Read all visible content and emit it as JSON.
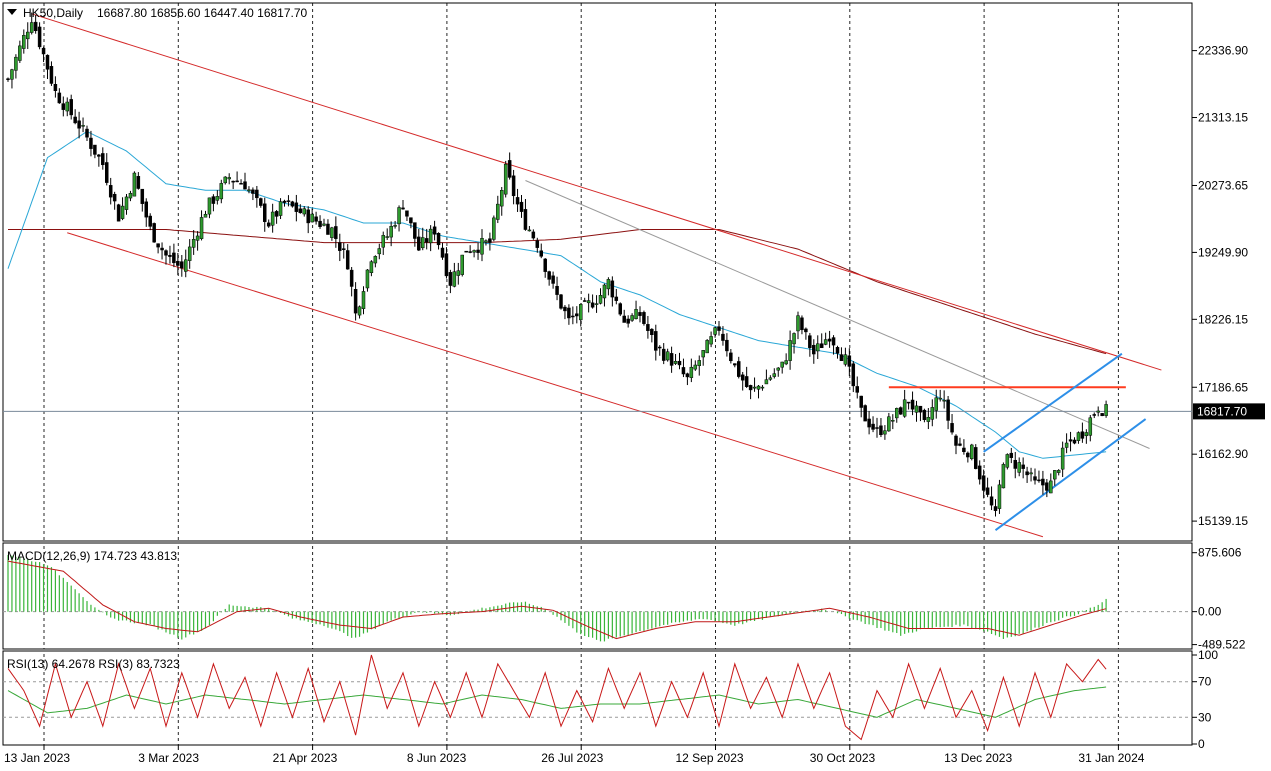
{
  "header": {
    "symbol_timeframe": "HK50,Daily",
    "ohlc": "16687.80 16856.60 16447.40 16817.70"
  },
  "colors": {
    "bull": "#2e9a2e",
    "bear": "#000000",
    "ma_fast": "#2aa7d6",
    "ma_slow": "#8b1010",
    "channel": "#d42a2a",
    "horizontal": "#ff3b1f",
    "rising_channel": "#2d8fe8",
    "trendline": "#9a9a9a",
    "macd_hist": "#39b539",
    "macd_signal": "#c01818",
    "rsi13": "#3aa83a",
    "rsi3": "#c81818",
    "current_price_bg": "#000000"
  },
  "chart_data": [
    {
      "type": "candlestick",
      "name": "price",
      "ylim": [
        14850,
        23050
      ],
      "y_ticks": [
        "22336.90",
        "21313.15",
        "20273.65",
        "19249.90",
        "18226.15",
        "17186.65",
        "16162.90",
        "15139.15"
      ],
      "current_price": "16817.70",
      "x_labels": [
        "13 Jan 2023",
        "3 Mar 2023",
        "21 Apr 2023",
        "8 Jun 2023",
        "26 Jul 2023",
        "12 Sep 2023",
        "30 Oct 2023",
        "13 Dec 2023",
        "31 Jan 2024"
      ],
      "close_anchors": [
        [
          0,
          21900
        ],
        [
          6,
          22850
        ],
        [
          12,
          21700
        ],
        [
          18,
          21200
        ],
        [
          24,
          20600
        ],
        [
          28,
          19800
        ],
        [
          32,
          20400
        ],
        [
          36,
          19600
        ],
        [
          40,
          19200
        ],
        [
          44,
          19000
        ],
        [
          50,
          19900
        ],
        [
          56,
          20400
        ],
        [
          60,
          20300
        ],
        [
          66,
          19700
        ],
        [
          70,
          20000
        ],
        [
          76,
          19800
        ],
        [
          82,
          19600
        ],
        [
          86,
          19100
        ],
        [
          88,
          18300
        ],
        [
          92,
          19200
        ],
        [
          96,
          19500
        ],
        [
          100,
          20000
        ],
        [
          104,
          19300
        ],
        [
          108,
          19600
        ],
        [
          112,
          18800
        ],
        [
          116,
          19300
        ],
        [
          122,
          19400
        ],
        [
          126,
          20500
        ],
        [
          130,
          19800
        ],
        [
          134,
          19400
        ],
        [
          138,
          18700
        ],
        [
          142,
          18200
        ],
        [
          146,
          18400
        ],
        [
          150,
          18600
        ],
        [
          152,
          18800
        ],
        [
          156,
          18200
        ],
        [
          160,
          18300
        ],
        [
          164,
          17800
        ],
        [
          168,
          17600
        ],
        [
          172,
          17300
        ],
        [
          176,
          17700
        ],
        [
          180,
          18100
        ],
        [
          184,
          17500
        ],
        [
          188,
          17100
        ],
        [
          192,
          17300
        ],
        [
          196,
          17500
        ],
        [
          200,
          18200
        ],
        [
          204,
          17700
        ],
        [
          208,
          18000
        ],
        [
          212,
          17600
        ],
        [
          216,
          16800
        ],
        [
          220,
          16500
        ],
        [
          224,
          16700
        ],
        [
          228,
          17000
        ],
        [
          232,
          16600
        ],
        [
          236,
          17100
        ],
        [
          240,
          16300
        ],
        [
          244,
          16200
        ],
        [
          248,
          15500
        ],
        [
          250,
          15200
        ],
        [
          252,
          16100
        ],
        [
          256,
          16000
        ],
        [
          260,
          15700
        ],
        [
          264,
          15700
        ],
        [
          268,
          16300
        ],
        [
          272,
          16500
        ],
        [
          276,
          16900
        ],
        [
          278,
          16818
        ]
      ],
      "ma_fast_anchors": [
        [
          0,
          19000
        ],
        [
          10,
          20700
        ],
        [
          20,
          21100
        ],
        [
          30,
          20800
        ],
        [
          40,
          20300
        ],
        [
          50,
          20200
        ],
        [
          60,
          20200
        ],
        [
          70,
          20000
        ],
        [
          80,
          19900
        ],
        [
          90,
          19700
        ],
        [
          100,
          19700
        ],
        [
          110,
          19500
        ],
        [
          120,
          19400
        ],
        [
          130,
          19300
        ],
        [
          140,
          19200
        ],
        [
          150,
          18800
        ],
        [
          160,
          18600
        ],
        [
          170,
          18300
        ],
        [
          180,
          18100
        ],
        [
          190,
          17900
        ],
        [
          200,
          17800
        ],
        [
          210,
          17700
        ],
        [
          220,
          17400
        ],
        [
          230,
          17200
        ],
        [
          240,
          16900
        ],
        [
          250,
          16500
        ],
        [
          256,
          16200
        ],
        [
          262,
          16100
        ],
        [
          270,
          16150
        ],
        [
          278,
          16200
        ]
      ],
      "ma_slow_anchors": [
        [
          0,
          19600
        ],
        [
          20,
          19600
        ],
        [
          40,
          19600
        ],
        [
          60,
          19500
        ],
        [
          80,
          19400
        ],
        [
          100,
          19400
        ],
        [
          120,
          19400
        ],
        [
          140,
          19450
        ],
        [
          160,
          19600
        ],
        [
          180,
          19600
        ],
        [
          200,
          19300
        ],
        [
          220,
          18800
        ],
        [
          240,
          18400
        ],
        [
          260,
          18000
        ],
        [
          278,
          17700
        ]
      ],
      "lines": [
        {
          "role": "channel",
          "from": [
            6,
            22900
          ],
          "to": [
            292,
            17450
          ]
        },
        {
          "role": "channel",
          "from": [
            15,
            19550
          ],
          "to": [
            262,
            14900
          ]
        },
        {
          "role": "trendline",
          "from": [
            131,
            20350
          ],
          "to": [
            289,
            16250
          ]
        },
        {
          "role": "horizontal",
          "from": [
            223,
            17186
          ],
          "to": [
            283,
            17186
          ]
        },
        {
          "role": "rising_channel",
          "from": [
            247,
            16200
          ],
          "to": [
            282,
            17700
          ]
        },
        {
          "role": "rising_channel",
          "from": [
            250,
            15000
          ],
          "to": [
            288,
            16700
          ]
        }
      ]
    },
    {
      "type": "macd",
      "name": "MACD",
      "label": "MACD(12,26,9) 174.723 43.813",
      "ylim": [
        -540,
        960
      ],
      "y_ticks": [
        "875.606",
        "0.00",
        "-489.522"
      ],
      "hist_anchors": [
        [
          0,
          850
        ],
        [
          10,
          700
        ],
        [
          16,
          400
        ],
        [
          22,
          50
        ],
        [
          26,
          -100
        ],
        [
          36,
          -200
        ],
        [
          44,
          -400
        ],
        [
          50,
          -250
        ],
        [
          56,
          100
        ],
        [
          66,
          50
        ],
        [
          72,
          -100
        ],
        [
          80,
          -200
        ],
        [
          88,
          -400
        ],
        [
          96,
          -150
        ],
        [
          104,
          0
        ],
        [
          112,
          -50
        ],
        [
          120,
          50
        ],
        [
          130,
          150
        ],
        [
          136,
          50
        ],
        [
          144,
          -300
        ],
        [
          150,
          -450
        ],
        [
          156,
          -350
        ],
        [
          166,
          -200
        ],
        [
          176,
          -100
        ],
        [
          184,
          -200
        ],
        [
          196,
          -50
        ],
        [
          206,
          50
        ],
        [
          216,
          -150
        ],
        [
          226,
          -350
        ],
        [
          232,
          -250
        ],
        [
          242,
          -200
        ],
        [
          248,
          -300
        ],
        [
          252,
          -400
        ],
        [
          258,
          -300
        ],
        [
          264,
          -150
        ],
        [
          270,
          -50
        ],
        [
          276,
          100
        ],
        [
          278,
          175
        ]
      ],
      "signal_anchors": [
        [
          0,
          750
        ],
        [
          14,
          600
        ],
        [
          24,
          100
        ],
        [
          32,
          -150
        ],
        [
          40,
          -250
        ],
        [
          48,
          -300
        ],
        [
          58,
          0
        ],
        [
          66,
          50
        ],
        [
          74,
          -80
        ],
        [
          84,
          -200
        ],
        [
          92,
          -250
        ],
        [
          100,
          -80
        ],
        [
          110,
          -30
        ],
        [
          120,
          0
        ],
        [
          130,
          80
        ],
        [
          138,
          20
        ],
        [
          146,
          -200
        ],
        [
          154,
          -400
        ],
        [
          164,
          -250
        ],
        [
          174,
          -150
        ],
        [
          184,
          -150
        ],
        [
          196,
          -50
        ],
        [
          208,
          50
        ],
        [
          218,
          -80
        ],
        [
          228,
          -250
        ],
        [
          238,
          -250
        ],
        [
          248,
          -250
        ],
        [
          256,
          -350
        ],
        [
          264,
          -200
        ],
        [
          272,
          -50
        ],
        [
          278,
          44
        ]
      ]
    },
    {
      "type": "rsi",
      "name": "RSI",
      "label": "RSI(13) 64.2678  RSI(3) 83.7323",
      "ylim": [
        0,
        100
      ],
      "y_ticks": [
        "100",
        "70",
        "30",
        "0"
      ],
      "levels": [
        70,
        30
      ],
      "rsi13_anchors": [
        [
          0,
          60
        ],
        [
          10,
          35
        ],
        [
          20,
          40
        ],
        [
          30,
          55
        ],
        [
          40,
          45
        ],
        [
          50,
          55
        ],
        [
          60,
          50
        ],
        [
          70,
          45
        ],
        [
          80,
          50
        ],
        [
          90,
          55
        ],
        [
          100,
          50
        ],
        [
          110,
          45
        ],
        [
          120,
          55
        ],
        [
          130,
          50
        ],
        [
          140,
          40
        ],
        [
          150,
          45
        ],
        [
          160,
          45
        ],
        [
          170,
          50
        ],
        [
          180,
          55
        ],
        [
          190,
          45
        ],
        [
          200,
          50
        ],
        [
          210,
          40
        ],
        [
          220,
          30
        ],
        [
          230,
          50
        ],
        [
          240,
          40
        ],
        [
          250,
          30
        ],
        [
          260,
          50
        ],
        [
          270,
          60
        ],
        [
          278,
          64
        ]
      ],
      "rsi3_anchors": [
        [
          0,
          85
        ],
        [
          4,
          60
        ],
        [
          8,
          20
        ],
        [
          12,
          90
        ],
        [
          16,
          30
        ],
        [
          20,
          70
        ],
        [
          24,
          20
        ],
        [
          28,
          90
        ],
        [
          32,
          40
        ],
        [
          36,
          85
        ],
        [
          40,
          20
        ],
        [
          44,
          80
        ],
        [
          48,
          30
        ],
        [
          52,
          90
        ],
        [
          56,
          40
        ],
        [
          60,
          75
        ],
        [
          64,
          20
        ],
        [
          68,
          80
        ],
        [
          72,
          30
        ],
        [
          76,
          85
        ],
        [
          80,
          25
        ],
        [
          84,
          70
        ],
        [
          88,
          10
        ],
        [
          92,
          100
        ],
        [
          96,
          40
        ],
        [
          100,
          80
        ],
        [
          104,
          20
        ],
        [
          108,
          70
        ],
        [
          112,
          30
        ],
        [
          116,
          80
        ],
        [
          120,
          30
        ],
        [
          124,
          90
        ],
        [
          128,
          60
        ],
        [
          132,
          30
        ],
        [
          136,
          80
        ],
        [
          140,
          20
        ],
        [
          144,
          60
        ],
        [
          148,
          25
        ],
        [
          152,
          85
        ],
        [
          156,
          40
        ],
        [
          160,
          80
        ],
        [
          164,
          20
        ],
        [
          168,
          70
        ],
        [
          172,
          30
        ],
        [
          176,
          80
        ],
        [
          180,
          20
        ],
        [
          184,
          90
        ],
        [
          188,
          40
        ],
        [
          192,
          75
        ],
        [
          196,
          30
        ],
        [
          200,
          90
        ],
        [
          204,
          40
        ],
        [
          208,
          80
        ],
        [
          212,
          20
        ],
        [
          216,
          5
        ],
        [
          220,
          60
        ],
        [
          224,
          30
        ],
        [
          228,
          90
        ],
        [
          232,
          40
        ],
        [
          236,
          85
        ],
        [
          240,
          30
        ],
        [
          244,
          60
        ],
        [
          248,
          15
        ],
        [
          252,
          75
        ],
        [
          256,
          20
        ],
        [
          260,
          80
        ],
        [
          264,
          30
        ],
        [
          268,
          90
        ],
        [
          272,
          70
        ],
        [
          276,
          95
        ],
        [
          278,
          84
        ]
      ]
    }
  ]
}
